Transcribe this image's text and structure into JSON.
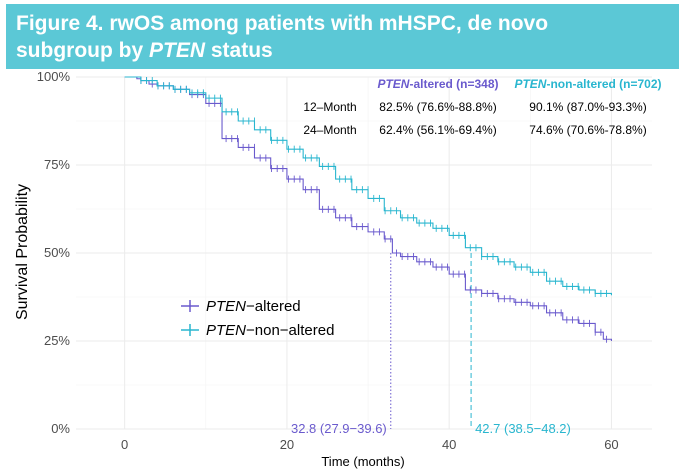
{
  "title": {
    "line1": "Figure 4. rwOS among patients with mHSPC, de novo",
    "line2_prefix": "subgroup by ",
    "line2_italic": "PTEN",
    "line2_suffix": " status"
  },
  "colors": {
    "banner": "#5bc8d6",
    "altered": "#6a5acd",
    "non_altered": "#29b6cf",
    "grid": "#ebebeb",
    "text": "#333333"
  },
  "chart_data": {
    "type": "line",
    "subtype": "kaplan-meier",
    "xlabel": "Time (months)",
    "ylabel": "Survival Probability",
    "xlim": [
      -6,
      65
    ],
    "ylim": [
      0,
      1
    ],
    "x_ticks": [
      0,
      20,
      40,
      60
    ],
    "x_tick_labels": [
      "0",
      "20",
      "40",
      "60"
    ],
    "y_ticks": [
      0,
      0.25,
      0.5,
      0.75,
      1.0
    ],
    "y_tick_labels": [
      "0%",
      "25%",
      "50%",
      "75%",
      "100%"
    ],
    "grid": true,
    "legend_position": "middle-left",
    "series": [
      {
        "key": "altered",
        "name_italic": "PTEN",
        "name_suffix": "−altered",
        "color": "#6a5acd",
        "median": 32.8,
        "median_label": "32.8 (27.9−39.6)",
        "points": [
          [
            0,
            1.0
          ],
          [
            1,
            1.0
          ],
          [
            1.5,
            0.995
          ],
          [
            2,
            0.99
          ],
          [
            3,
            0.98
          ],
          [
            4,
            0.975
          ],
          [
            6,
            0.965
          ],
          [
            8,
            0.95
          ],
          [
            10,
            0.925
          ],
          [
            12,
            0.825
          ],
          [
            14,
            0.8
          ],
          [
            16,
            0.77
          ],
          [
            18,
            0.74
          ],
          [
            20,
            0.71
          ],
          [
            22,
            0.68
          ],
          [
            24,
            0.624
          ],
          [
            26,
            0.6
          ],
          [
            28,
            0.575
          ],
          [
            30,
            0.56
          ],
          [
            32,
            0.54
          ],
          [
            33,
            0.5
          ],
          [
            34,
            0.49
          ],
          [
            36,
            0.475
          ],
          [
            38,
            0.46
          ],
          [
            40,
            0.44
          ],
          [
            42,
            0.395
          ],
          [
            44,
            0.385
          ],
          [
            46,
            0.37
          ],
          [
            48,
            0.36
          ],
          [
            50,
            0.35
          ],
          [
            52,
            0.33
          ],
          [
            54,
            0.31
          ],
          [
            56,
            0.3
          ],
          [
            58,
            0.275
          ],
          [
            59,
            0.255
          ],
          [
            60,
            0.25
          ]
        ]
      },
      {
        "key": "non_altered",
        "name_italic": "PTEN",
        "name_suffix": "−non−altered",
        "color": "#29b6cf",
        "median": 42.7,
        "median_label": "42.7 (38.5−48.2)",
        "points": [
          [
            0,
            1.0
          ],
          [
            1.5,
            1.0
          ],
          [
            2,
            0.99
          ],
          [
            4,
            0.975
          ],
          [
            6,
            0.965
          ],
          [
            8,
            0.955
          ],
          [
            10,
            0.94
          ],
          [
            12,
            0.901
          ],
          [
            14,
            0.875
          ],
          [
            16,
            0.85
          ],
          [
            18,
            0.82
          ],
          [
            20,
            0.795
          ],
          [
            22,
            0.77
          ],
          [
            24,
            0.746
          ],
          [
            26,
            0.71
          ],
          [
            28,
            0.68
          ],
          [
            30,
            0.655
          ],
          [
            32,
            0.62
          ],
          [
            34,
            0.6
          ],
          [
            36,
            0.585
          ],
          [
            38,
            0.57
          ],
          [
            40,
            0.55
          ],
          [
            42,
            0.515
          ],
          [
            44,
            0.49
          ],
          [
            46,
            0.475
          ],
          [
            48,
            0.46
          ],
          [
            50,
            0.445
          ],
          [
            52,
            0.42
          ],
          [
            54,
            0.405
          ],
          [
            56,
            0.395
          ],
          [
            58,
            0.385
          ],
          [
            60,
            0.38
          ]
        ]
      }
    ],
    "table": {
      "headers": [
        {
          "italic": "PTEN",
          "suffix": "-altered (n=348)"
        },
        {
          "italic": "PTEN",
          "suffix": "-non-altered (n=702)"
        }
      ],
      "rows": [
        {
          "label": "12–Month",
          "altered": "82.5% (76.6%-88.8%)",
          "non_altered": "90.1% (87.0%-93.3%)"
        },
        {
          "label": "24–Month",
          "altered": "62.4% (56.1%-69.4%)",
          "non_altered": "74.6% (70.6%-78.8%)"
        }
      ]
    }
  }
}
